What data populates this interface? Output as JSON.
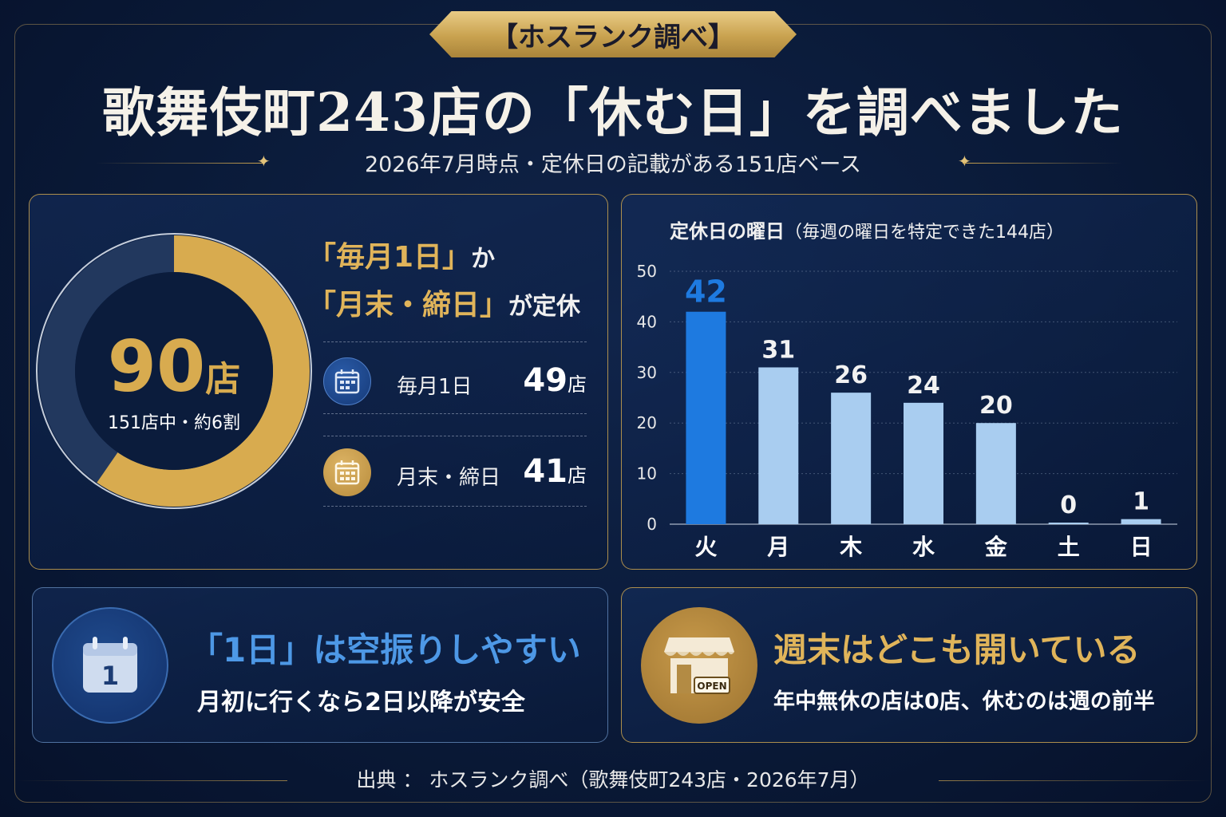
{
  "badge": "【ホスランク調べ】",
  "title": "歌舞伎町243店の「休む日」を調べました",
  "subtitle": "2026年7月時点・定休日の記載がある151店ベース",
  "donut_panel": {
    "big_number": "90",
    "big_unit": "店",
    "center_sub": "151店中・約6割",
    "share": 0.596,
    "headline_line1_gold": "「毎月1日」",
    "headline_line1_white": "か",
    "headline_line2_gold": "「月末・締日」",
    "headline_line2_white": "が定休",
    "items": [
      {
        "icon": "calendar-icon",
        "label": "毎月1日",
        "value": "49",
        "unit": "店"
      },
      {
        "icon": "calendar-icon",
        "label": "月末・締日",
        "value": "41",
        "unit": "店"
      }
    ]
  },
  "chart_data": {
    "type": "bar",
    "title": "定休日の曜日",
    "subtitle": "（毎週の曜日を特定できた144店）",
    "categories": [
      "火",
      "月",
      "木",
      "水",
      "金",
      "土",
      "日"
    ],
    "values": [
      42,
      31,
      26,
      24,
      20,
      0,
      1
    ],
    "ylim": [
      0,
      50
    ],
    "yticks": [
      0,
      10,
      20,
      30,
      40,
      50
    ],
    "grid": true,
    "highlight_color": "#1e7ae0",
    "bar_color": "#a9cdf0",
    "highlight_index": 0
  },
  "tip1": {
    "icon": "calendar-one-icon",
    "icon_text": "1",
    "head": "「1日」は空振りしやすい",
    "sub": "月初に行くなら2日以降が安全"
  },
  "tip2": {
    "icon": "storefront-open-icon",
    "sign_text": "OPEN",
    "head": "週末はどこも開いている",
    "sub": "年中無休の店は0店、休むのは週の前半"
  },
  "source": "出典 ： ホスランク調べ（歌舞伎町243店・2026年7月）",
  "colors": {
    "gold": "#d8ab4f",
    "navy": "#0a1a38",
    "blue_accent": "#4d98e6"
  }
}
